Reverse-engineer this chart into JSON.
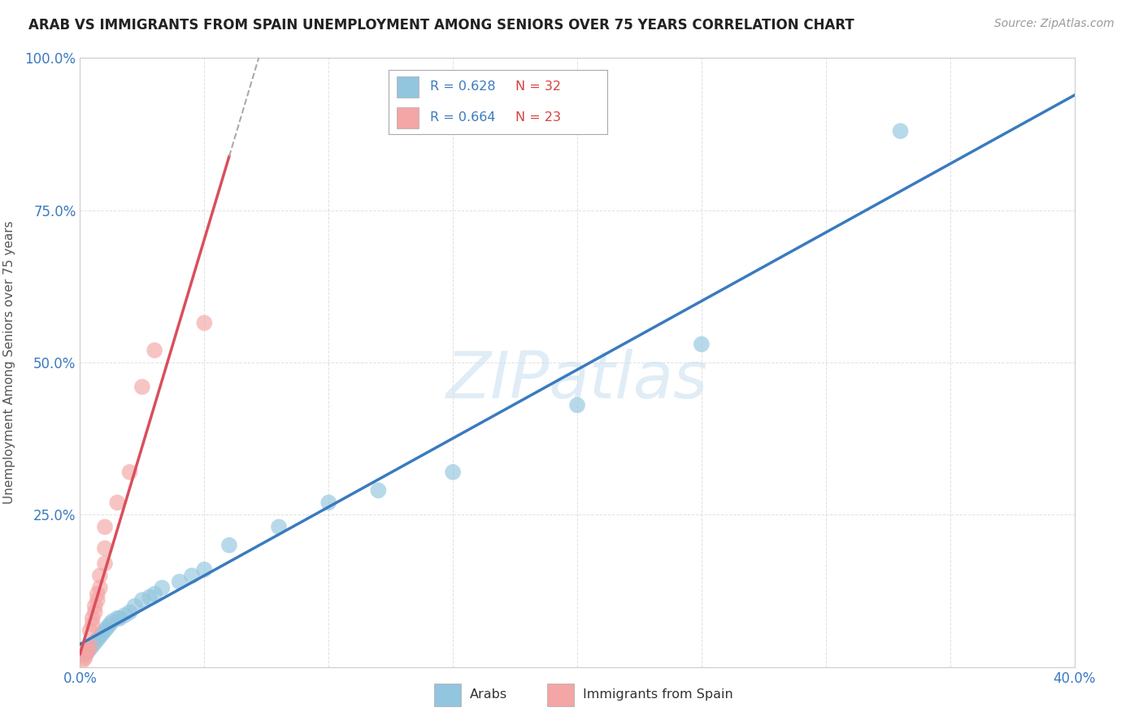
{
  "title": "ARAB VS IMMIGRANTS FROM SPAIN UNEMPLOYMENT AMONG SENIORS OVER 75 YEARS CORRELATION CHART",
  "source": "Source: ZipAtlas.com",
  "ylabel": "Unemployment Among Seniors over 75 years",
  "xlim": [
    0.0,
    0.4
  ],
  "ylim": [
    0.0,
    1.0
  ],
  "xticks": [
    0.0,
    0.05,
    0.1,
    0.15,
    0.2,
    0.25,
    0.3,
    0.35,
    0.4
  ],
  "yticks": [
    0.0,
    0.25,
    0.5,
    0.75,
    1.0
  ],
  "legend_r_arab": "R = 0.628",
  "legend_n_arab": "N = 32",
  "legend_r_spain": "R = 0.664",
  "legend_n_spain": "N = 23",
  "arab_color": "#92c5de",
  "spain_color": "#f4a5a5",
  "arab_line_color": "#3a7abf",
  "spain_line_color": "#d94f5c",
  "watermark_text": "ZIPatlas",
  "background_color": "#ffffff",
  "grid_color": "#cccccc",
  "arab_scatter_x": [
    0.002,
    0.003,
    0.004,
    0.005,
    0.006,
    0.007,
    0.008,
    0.009,
    0.01,
    0.011,
    0.012,
    0.013,
    0.015,
    0.016,
    0.018,
    0.02,
    0.022,
    0.025,
    0.028,
    0.03,
    0.033,
    0.04,
    0.045,
    0.05,
    0.06,
    0.08,
    0.1,
    0.12,
    0.15,
    0.2,
    0.25,
    0.33
  ],
  "arab_scatter_y": [
    0.02,
    0.025,
    0.03,
    0.035,
    0.04,
    0.045,
    0.05,
    0.055,
    0.06,
    0.065,
    0.07,
    0.075,
    0.08,
    0.08,
    0.085,
    0.09,
    0.1,
    0.11,
    0.115,
    0.12,
    0.13,
    0.14,
    0.15,
    0.16,
    0.2,
    0.23,
    0.27,
    0.29,
    0.32,
    0.43,
    0.53,
    0.88
  ],
  "spain_scatter_x": [
    0.001,
    0.002,
    0.002,
    0.003,
    0.003,
    0.004,
    0.004,
    0.005,
    0.005,
    0.006,
    0.006,
    0.007,
    0.007,
    0.008,
    0.008,
    0.01,
    0.01,
    0.01,
    0.015,
    0.02,
    0.025,
    0.03,
    0.05
  ],
  "spain_scatter_y": [
    0.01,
    0.015,
    0.02,
    0.025,
    0.03,
    0.035,
    0.06,
    0.07,
    0.08,
    0.09,
    0.1,
    0.11,
    0.12,
    0.13,
    0.15,
    0.17,
    0.195,
    0.23,
    0.27,
    0.32,
    0.46,
    0.52,
    0.565
  ]
}
